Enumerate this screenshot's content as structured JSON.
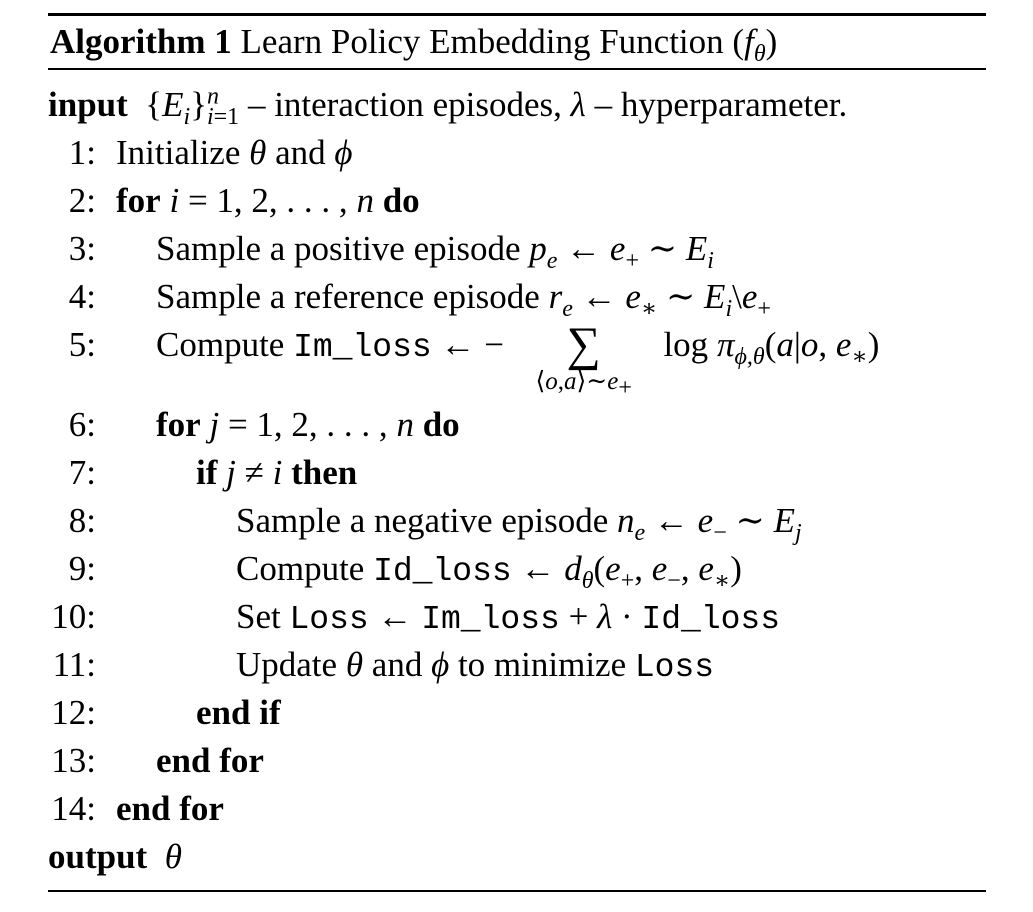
{
  "algorithm": {
    "label": "Algorithm 1",
    "title": "Learn Policy Embedding Function (fθ)",
    "input_keyword": "input",
    "input_text": "{Ei}ni=1 – interaction episodes, λ – hyperparameter.",
    "output_keyword": "output",
    "output_text": "θ",
    "lines": [
      {
        "num": "1:",
        "text": "Initialize θ and ϕ"
      },
      {
        "num": "2:",
        "text": "for i = 1, 2, . . . , n do"
      },
      {
        "num": "3:",
        "text": "Sample a positive episode pe ← e+ ∼ Ei"
      },
      {
        "num": "4:",
        "text": "Sample a reference episode re ← e∗ ∼ Ei\\e+"
      },
      {
        "num": "5:",
        "text": "Compute Im_loss ← − ∑⟨o,a⟩∼e+ log πϕ,θ(a|o, e∗)"
      },
      {
        "num": "6:",
        "text": "for j = 1, 2, . . . , n do"
      },
      {
        "num": "7:",
        "text": "if j ≠ i then"
      },
      {
        "num": "8:",
        "text": "Sample a negative episode ne ← e− ∼ Ej"
      },
      {
        "num": "9:",
        "text": "Compute Id_loss ← dθ(e+, e−, e∗)"
      },
      {
        "num": "10:",
        "text": "Set Loss ← Im_loss + λ · Id_loss"
      },
      {
        "num": "11:",
        "text": "Update θ and ϕ to minimize Loss"
      },
      {
        "num": "12:",
        "text": "end if"
      },
      {
        "num": "13:",
        "text": "end for"
      },
      {
        "num": "14:",
        "text": "end for"
      }
    ]
  }
}
